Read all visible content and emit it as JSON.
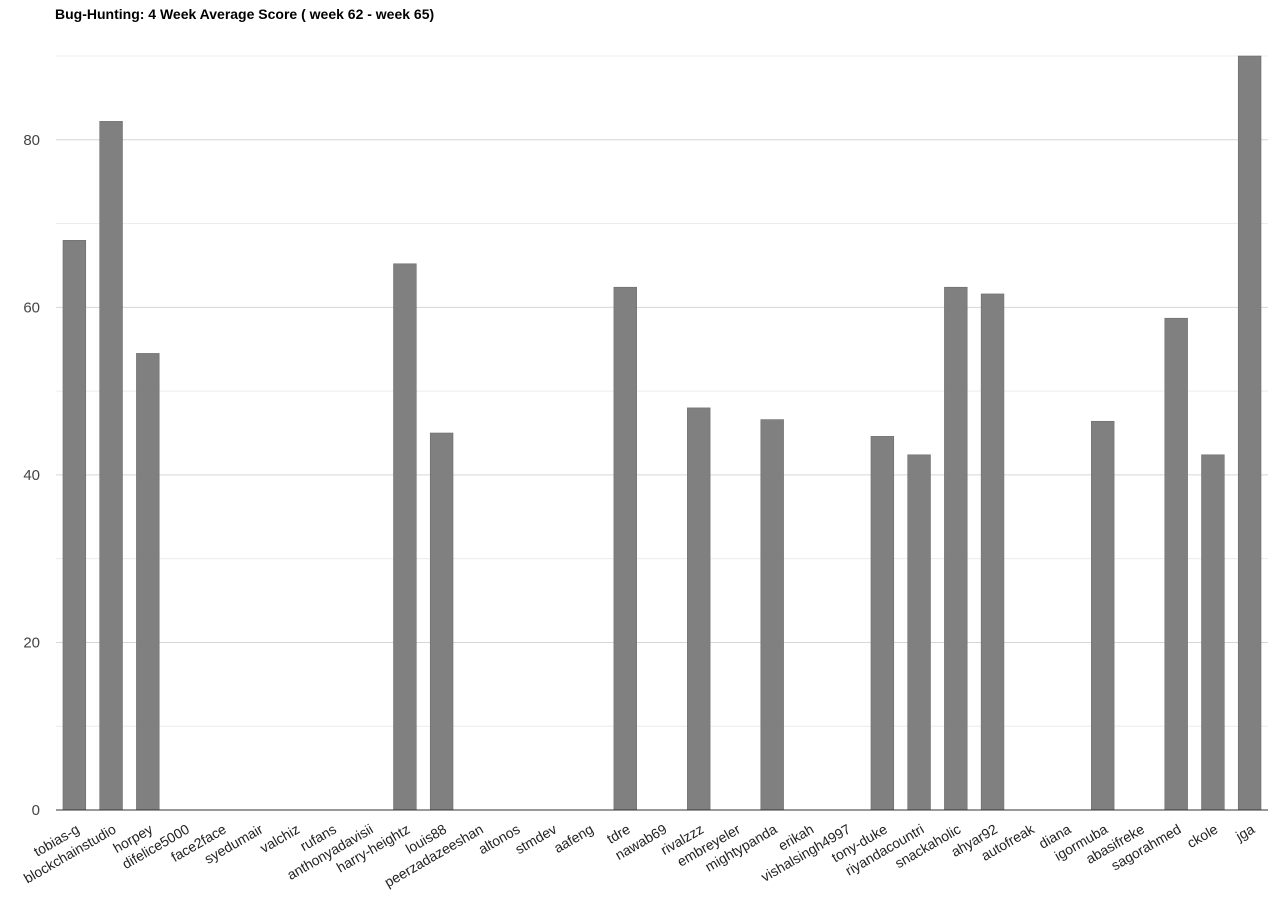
{
  "chart_data": {
    "type": "bar",
    "title": "Bug-Hunting: 4 Week Average Score ( week 62 - week 65)",
    "xlabel": "",
    "ylabel": "",
    "ylim": [
      0,
      90
    ],
    "yticks": [
      0,
      20,
      40,
      60,
      80
    ],
    "grid": true,
    "legend": "none",
    "categories": [
      "tobias-g",
      "blockchainstudio",
      "horpey",
      "difelice5000",
      "face2face",
      "syedumair",
      "valchiz",
      "rufans",
      "anthonyadavisii",
      "harry-heightz",
      "louis88",
      "peerzadazeeshan",
      "altonos",
      "stmdev",
      "aafeng",
      "tdre",
      "nawab69",
      "rivalzzz",
      "embreyeler",
      "mightypanda",
      "erikah",
      "vishalsingh4997",
      "tony-duke",
      "riyandacountri",
      "snackaholic",
      "ahyar92",
      "autofreak",
      "diana",
      "igormuba",
      "abasifreke",
      "sagorahmed",
      "ckole",
      "jga"
    ],
    "values": [
      68,
      82.2,
      54.5,
      0,
      0,
      0,
      0,
      0,
      0,
      65.2,
      45,
      0,
      0,
      0,
      0,
      62.4,
      0,
      48,
      0,
      46.6,
      0,
      0,
      44.6,
      42.4,
      62.4,
      61.6,
      0,
      0,
      46.4,
      0,
      58.7,
      42.4,
      90
    ],
    "colors": {
      "bar": "#808080",
      "bar_edge": "#6e6e6e",
      "grid": "#d6d6d6",
      "minor_grid": "#ececec",
      "axis": "#333333"
    }
  }
}
